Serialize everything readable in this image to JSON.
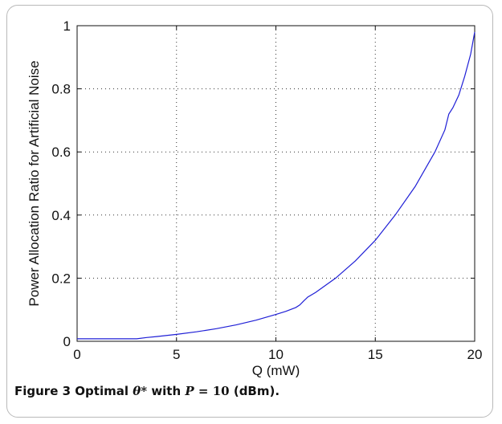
{
  "figure": {
    "caption_label": "Figure 3",
    "caption_text_1": "Optimal",
    "caption_symbol": "θ*",
    "caption_text_2": "with",
    "caption_var": "P",
    "caption_eq": "=",
    "caption_value": "10",
    "caption_unit": "(dBm)."
  },
  "chart_data": {
    "type": "line",
    "title": "",
    "xlabel": "Q (mW)",
    "ylabel": "Power Allocation Ratio for Artificial Noise",
    "xlim": [
      0,
      20
    ],
    "ylim": [
      0,
      1
    ],
    "xticks": [
      0,
      5,
      10,
      15,
      20
    ],
    "yticks": [
      0,
      0.2,
      0.4,
      0.6,
      0.8,
      1
    ],
    "xtick_labels": [
      "0",
      "5",
      "10",
      "15",
      "20"
    ],
    "ytick_labels": [
      "0",
      "0.2",
      "0.4",
      "0.6",
      "0.8",
      "1"
    ],
    "grid": true,
    "grid_style": "dotted",
    "line_color": "#1f1fd6",
    "series": [
      {
        "x": [
          0,
          1,
          2,
          3,
          3.5,
          4,
          5,
          6,
          7,
          8,
          9,
          10,
          10.5,
          11,
          11.2,
          11.4,
          11.6,
          12,
          13,
          14,
          15,
          16,
          17,
          18,
          18.5,
          18.7,
          18.9,
          19.2,
          19.5,
          19.8,
          20
        ],
        "y": [
          0.008,
          0.008,
          0.008,
          0.008,
          0.012,
          0.015,
          0.022,
          0.03,
          0.04,
          0.052,
          0.067,
          0.085,
          0.095,
          0.107,
          0.115,
          0.128,
          0.14,
          0.155,
          0.2,
          0.255,
          0.32,
          0.4,
          0.49,
          0.6,
          0.67,
          0.72,
          0.74,
          0.78,
          0.84,
          0.91,
          0.98
        ]
      }
    ]
  }
}
